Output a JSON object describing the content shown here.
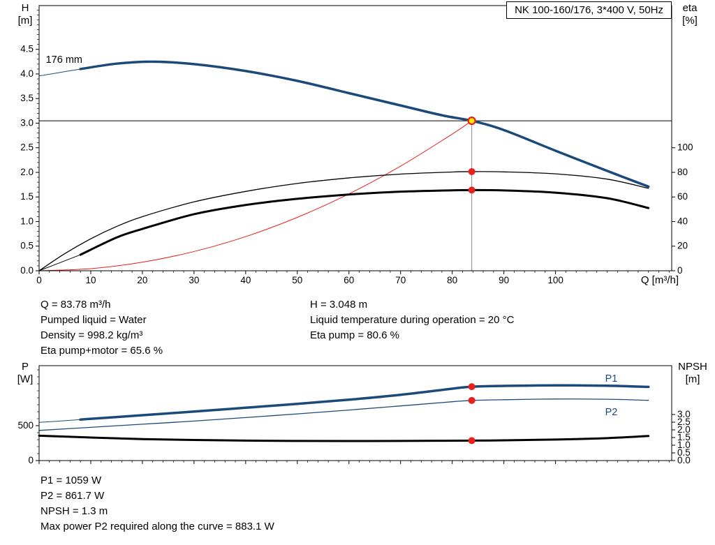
{
  "title_box": "NK 100-160/176, 3*400 V, 50Hz",
  "colors": {
    "curve_blue": "#1b4a7a",
    "marker_red": "#e8211a",
    "duty_yellow": "#ffe600",
    "axis_black": "#000000",
    "guide_gray": "#8a8a8a"
  },
  "info": {
    "left": [
      "Q = 83.78 m³/h",
      "Pumped liquid = Water",
      "Density = 998.2 kg/m³",
      "Eta pump+motor = 65.6 %"
    ],
    "right": [
      "H = 3.048 m",
      "Liquid temperature during operation = 20 °C",
      "Eta pump = 80.6 %"
    ]
  },
  "footer": {
    "lines": [
      "P1 = 1059 W",
      "P2 = 861.7 W",
      "NPSH = 1.3 m",
      "Max power P2 required along the curve = 883.1 W"
    ]
  },
  "chart_data": [
    {
      "type": "line",
      "name": "hq-eta-chart",
      "title": "NK 100-160/176, 3*400 V, 50Hz",
      "x_axis": {
        "label": "Q [m³/h]",
        "min": 0,
        "max": 122.5,
        "major_ticks": [
          0,
          10,
          20,
          30,
          40,
          50,
          60,
          70,
          80,
          90,
          100
        ],
        "minor_step": 2,
        "decimals": 0
      },
      "y_left": {
        "label_lines": [
          "H",
          "[m]"
        ],
        "min": 0,
        "max": 5.39,
        "major_ticks": [
          0,
          0.5,
          1,
          1.5,
          2,
          2.5,
          3,
          3.5,
          4,
          4.5
        ],
        "minor_step": 0.1,
        "decimals": 1
      },
      "y_right": {
        "label_lines": [
          "eta",
          "[%]"
        ],
        "min": 0,
        "max": 215.6,
        "major_ticks": [
          0,
          20,
          40,
          60,
          80,
          100
        ],
        "decimals": 0
      },
      "series": [
        {
          "name": "duty-head-line",
          "axis": "left",
          "color": "#000000",
          "width": 1,
          "straight": true,
          "points": [
            [
              0,
              3.048
            ],
            [
              122.5,
              3.048
            ]
          ]
        },
        {
          "name": "duty-flow-line",
          "axis": "left",
          "color": "#8a8a8a",
          "width": 1,
          "straight": true,
          "points": [
            [
              83.78,
              0
            ],
            [
              83.78,
              3.048
            ]
          ]
        },
        {
          "name": "system-curve",
          "axis": "left",
          "color": "#e8211a",
          "width": 1,
          "points": [
            [
              0,
              0
            ],
            [
              10,
              0.043
            ],
            [
              20,
              0.174
            ],
            [
              30,
              0.391
            ],
            [
              40,
              0.694
            ],
            [
              50,
              1.085
            ],
            [
              60,
              1.563
            ],
            [
              70,
              2.127
            ],
            [
              80,
              2.778
            ],
            [
              83.78,
              3.048
            ]
          ]
        },
        {
          "name": "eta-pump-curve",
          "axis": "right",
          "color": "#000000",
          "width": 1.3,
          "points": [
            [
              0,
              0
            ],
            [
              5,
              14
            ],
            [
              10,
              26
            ],
            [
              15,
              36
            ],
            [
              20,
              44
            ],
            [
              30,
              56
            ],
            [
              40,
              64.5
            ],
            [
              50,
              71
            ],
            [
              60,
              75.5
            ],
            [
              70,
              78.6
            ],
            [
              80,
              80.3
            ],
            [
              83.78,
              80.6
            ],
            [
              90,
              80.4
            ],
            [
              100,
              78.8
            ],
            [
              110,
              74.5
            ],
            [
              118,
              67
            ]
          ]
        },
        {
          "name": "eta-pump-motor-lead",
          "axis": "right",
          "color": "#000000",
          "width": 1,
          "points": [
            [
              0,
              0
            ],
            [
              4,
              6.5
            ],
            [
              8,
              13
            ]
          ]
        },
        {
          "name": "eta-pump-motor-curve",
          "axis": "right",
          "color": "#000000",
          "width": 3,
          "points": [
            [
              8,
              13
            ],
            [
              15,
              27
            ],
            [
              20,
              34
            ],
            [
              30,
              46
            ],
            [
              40,
              53.5
            ],
            [
              50,
              58.5
            ],
            [
              60,
              62
            ],
            [
              70,
              64.3
            ],
            [
              80,
              65.4
            ],
            [
              83.78,
              65.6
            ],
            [
              90,
              65.3
            ],
            [
              100,
              63.5
            ],
            [
              110,
              59
            ],
            [
              118,
              51
            ]
          ]
        },
        {
          "name": "pump-curve-lead",
          "axis": "left",
          "color": "#1b4a7a",
          "width": 1,
          "points": [
            [
              0,
              3.96
            ],
            [
              4,
              4.03
            ],
            [
              8,
              4.1
            ]
          ]
        },
        {
          "name": "pump-curve-176mm",
          "axis": "left",
          "color": "#1b4a7a",
          "width": 3.5,
          "points": [
            [
              8,
              4.1
            ],
            [
              15,
              4.21
            ],
            [
              22,
              4.25
            ],
            [
              30,
              4.2
            ],
            [
              40,
              4.06
            ],
            [
              50,
              3.86
            ],
            [
              60,
              3.61
            ],
            [
              70,
              3.36
            ],
            [
              78,
              3.16
            ],
            [
              83.78,
              3.048
            ],
            [
              90,
              2.86
            ],
            [
              100,
              2.44
            ],
            [
              110,
              2.03
            ],
            [
              118,
              1.71
            ]
          ]
        }
      ],
      "markers": [
        {
          "name": "eta-pump-point",
          "q": 83.78,
          "v": 80.6,
          "axis": "right",
          "r": 5,
          "fill": "#e8211a"
        },
        {
          "name": "eta-pump-motor-point",
          "q": 83.78,
          "v": 65.6,
          "axis": "right",
          "r": 5,
          "fill": "#e8211a"
        },
        {
          "name": "duty-point",
          "q": 83.78,
          "v": 3.048,
          "axis": "left",
          "r": 5,
          "fill": "#ffe600",
          "stroke": "#e8211a",
          "stroke_width": 2.2,
          "interactable": true
        }
      ],
      "annotations": [
        {
          "name": "impeller-size-label",
          "text": "176 mm",
          "q": 1.3,
          "v": 4.23,
          "axis": "left",
          "color": "#000000",
          "anchor": "start",
          "size": 14.5
        }
      ]
    },
    {
      "type": "line",
      "name": "power-npsh-chart",
      "x_axis": {
        "min": 0,
        "max": 122.5,
        "major_ticks": [
          0,
          10,
          20,
          30,
          40,
          50,
          60,
          70,
          80,
          90,
          100
        ],
        "minor_step": 2,
        "decimals": 0,
        "show_labels": false
      },
      "y_left": {
        "label_lines": [
          "P",
          "[W]"
        ],
        "min": 0,
        "max": 1360,
        "major_ticks": [
          0,
          500
        ],
        "minor_step": 100,
        "decimals": 0
      },
      "y_right": {
        "label_lines": [
          "NPSH",
          "[m]"
        ],
        "min": 0,
        "max": 6.18,
        "major_ticks": [
          0,
          0.5,
          1,
          1.5,
          2,
          2.5,
          3
        ],
        "decimals": 1
      },
      "series": [
        {
          "name": "p2-curve",
          "axis": "left",
          "color": "#1b4a7a",
          "width": 1.3,
          "points": [
            [
              0,
              432
            ],
            [
              10,
              476
            ],
            [
              20,
              521
            ],
            [
              30,
              566
            ],
            [
              40,
              616
            ],
            [
              50,
              669
            ],
            [
              60,
              724
            ],
            [
              70,
              783
            ],
            [
              80,
              843
            ],
            [
              83.78,
              861.7
            ],
            [
              90,
              872
            ],
            [
              100,
              882
            ],
            [
              110,
              879
            ],
            [
              118,
              863
            ]
          ]
        },
        {
          "name": "p1-lead",
          "axis": "left",
          "color": "#1b4a7a",
          "width": 1,
          "points": [
            [
              0,
              548
            ],
            [
              4,
              566
            ],
            [
              8,
              588
            ]
          ]
        },
        {
          "name": "p1-curve",
          "axis": "left",
          "color": "#1b4a7a",
          "width": 3.5,
          "points": [
            [
              8,
              588
            ],
            [
              20,
              650
            ],
            [
              30,
              702
            ],
            [
              40,
              757
            ],
            [
              50,
              813
            ],
            [
              60,
              872
            ],
            [
              70,
              942
            ],
            [
              80,
              1030
            ],
            [
              83.78,
              1059
            ],
            [
              90,
              1070
            ],
            [
              100,
              1078
            ],
            [
              110,
              1072
            ],
            [
              118,
              1056
            ]
          ]
        },
        {
          "name": "npsh-curve",
          "axis": "right",
          "color": "#000000",
          "width": 3,
          "points": [
            [
              0,
              1.62
            ],
            [
              10,
              1.5
            ],
            [
              20,
              1.4
            ],
            [
              30,
              1.34
            ],
            [
              40,
              1.3
            ],
            [
              50,
              1.28
            ],
            [
              60,
              1.27
            ],
            [
              70,
              1.28
            ],
            [
              83.78,
              1.3
            ],
            [
              90,
              1.32
            ],
            [
              100,
              1.37
            ],
            [
              110,
              1.46
            ],
            [
              118,
              1.6
            ]
          ]
        }
      ],
      "markers": [
        {
          "name": "p1-point",
          "q": 83.78,
          "v": 1059,
          "axis": "left",
          "r": 5,
          "fill": "#e8211a"
        },
        {
          "name": "p2-point",
          "q": 83.78,
          "v": 861.7,
          "axis": "left",
          "r": 5,
          "fill": "#e8211a"
        },
        {
          "name": "npsh-point",
          "q": 83.78,
          "v": 1.3,
          "axis": "right",
          "r": 5,
          "fill": "#e8211a"
        }
      ],
      "annotations": [
        {
          "name": "p1-label",
          "text": "P1",
          "q": 109.6,
          "v": 1130,
          "axis": "left",
          "color": "#1b4a7a",
          "anchor": "start",
          "size": 14.5
        },
        {
          "name": "p2-label",
          "text": "P2",
          "q": 109.6,
          "v": 650,
          "axis": "left",
          "color": "#1b4a7a",
          "anchor": "start",
          "size": 14.5
        }
      ]
    }
  ]
}
